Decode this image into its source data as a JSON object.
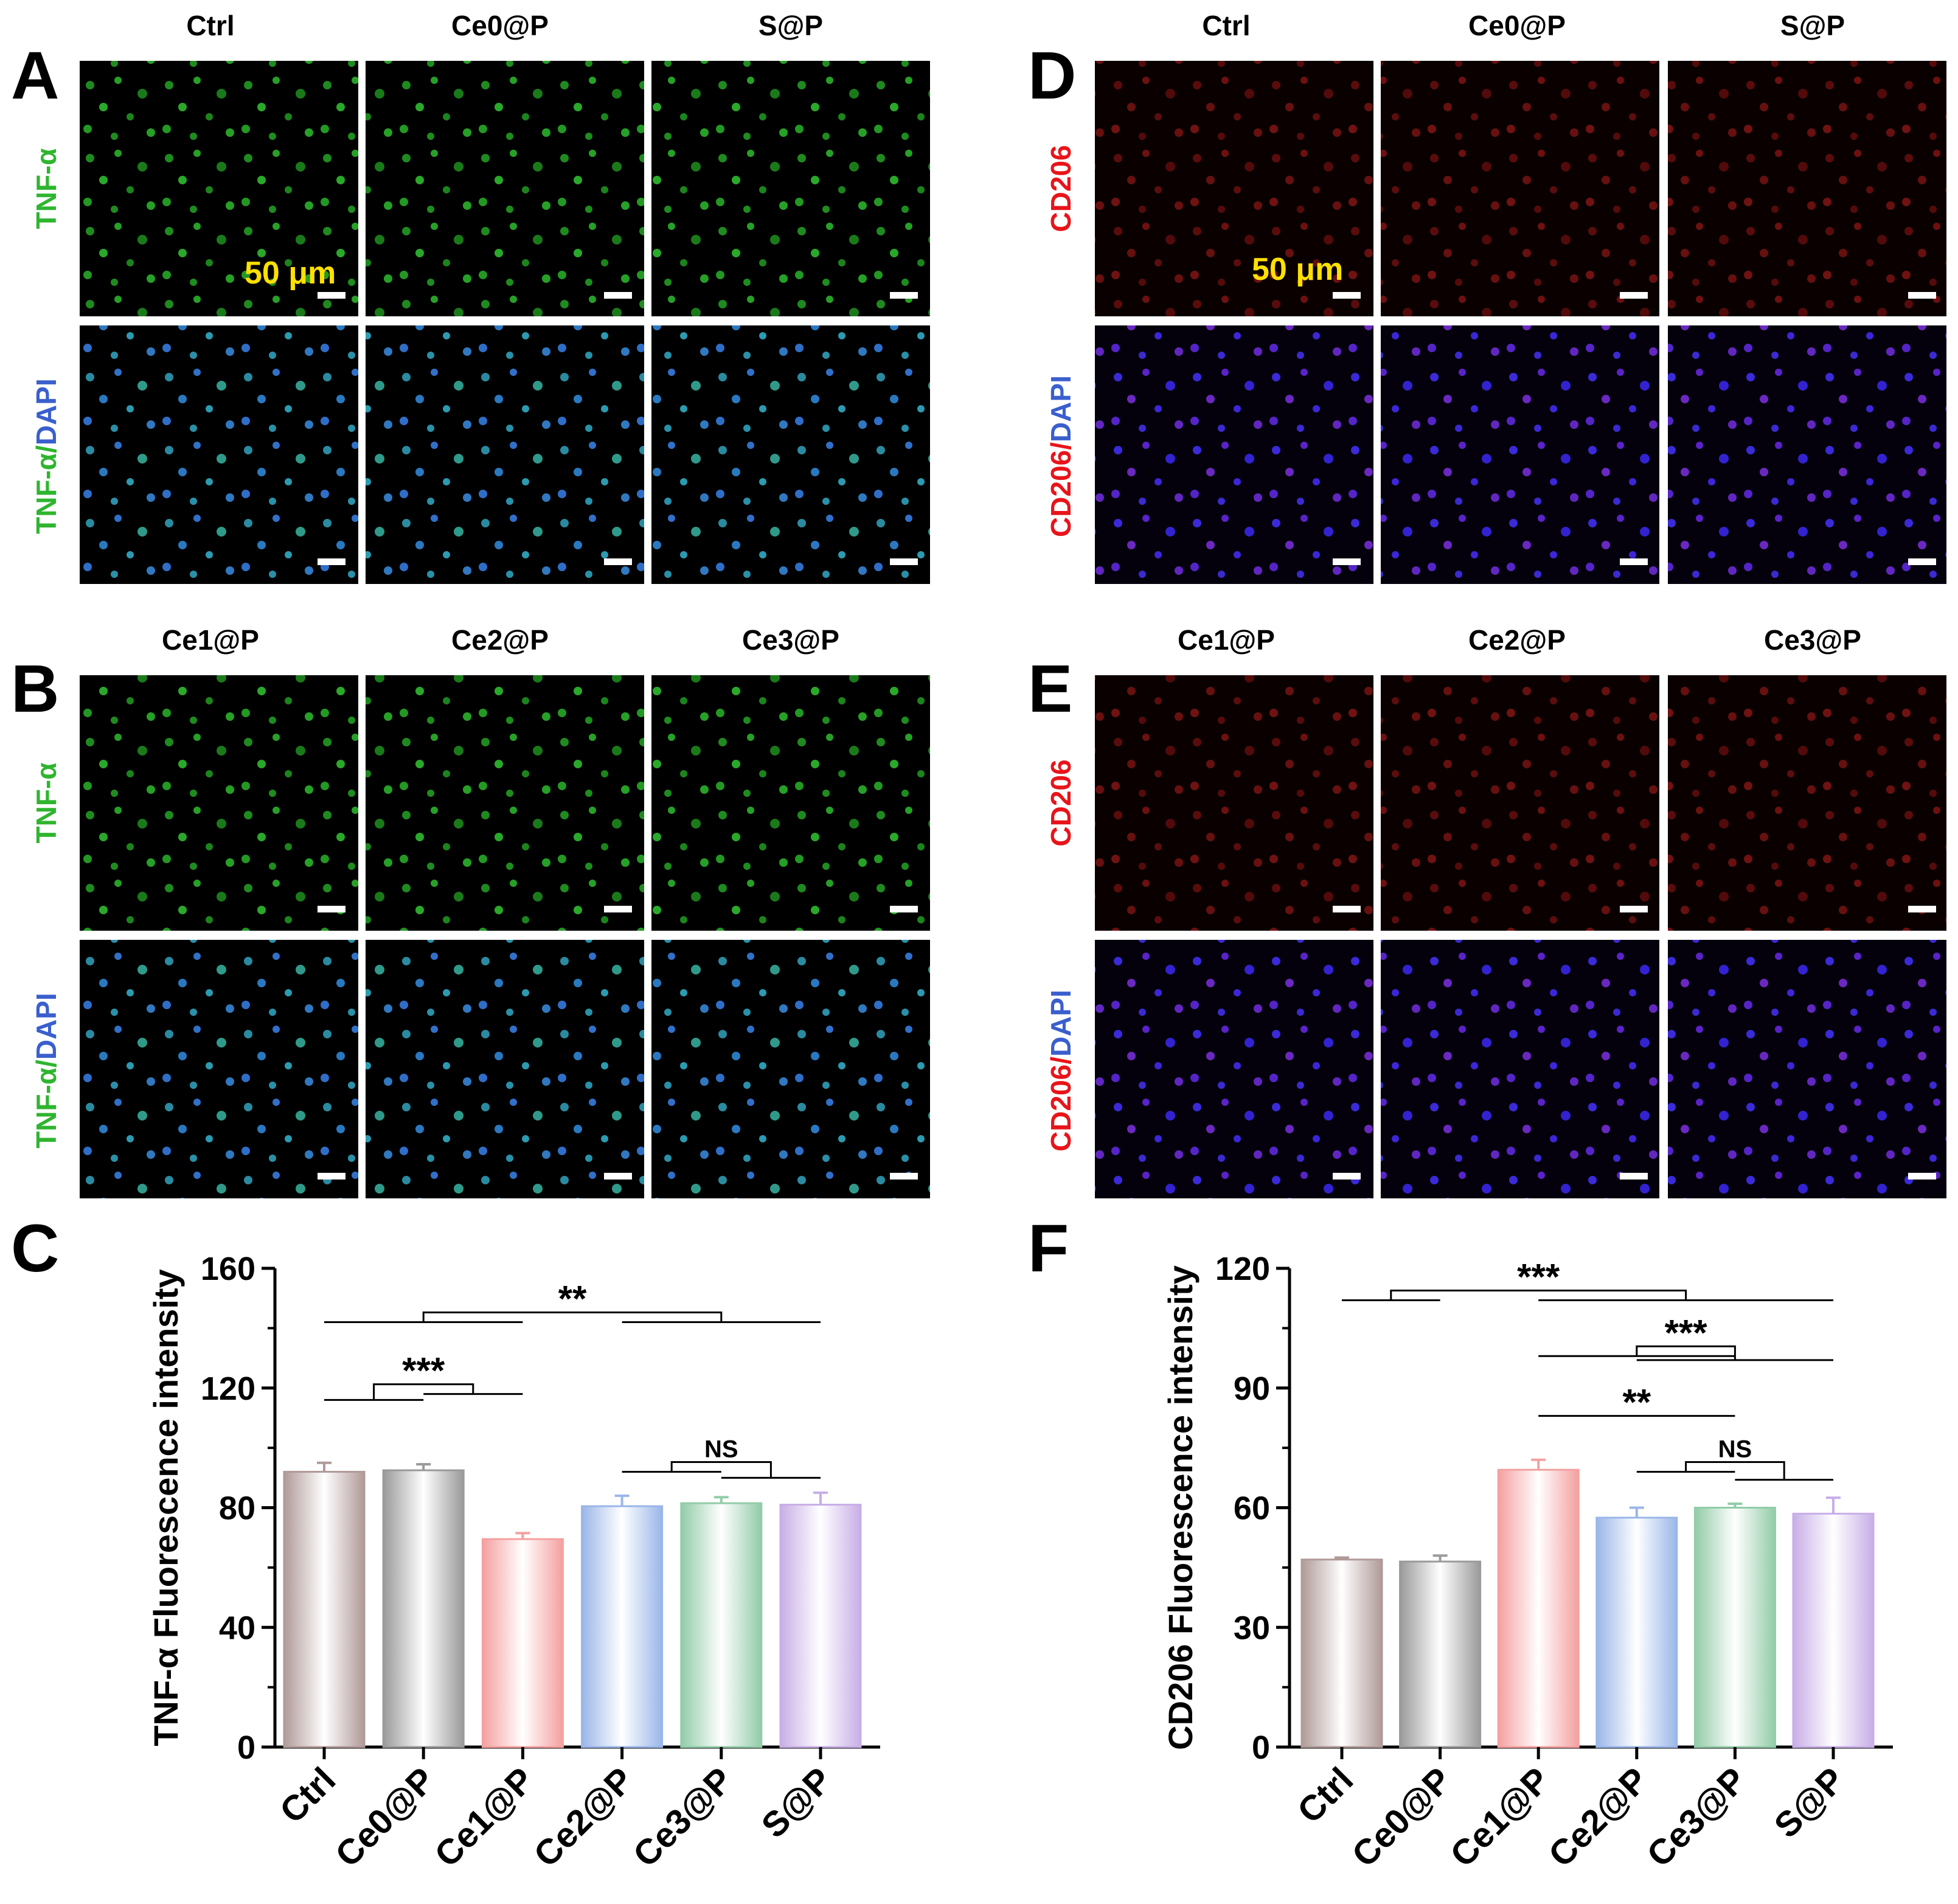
{
  "panels": {
    "A": {
      "letter": "A",
      "columns": [
        "Ctrl",
        "Ce0@P",
        "S@P"
      ],
      "row_labels": [
        [
          {
            "text": "TNF-α",
            "color": "#2fb52f"
          }
        ],
        [
          {
            "text": "TNF-α",
            "color": "#2fb52f"
          },
          {
            "text": "/",
            "color": "#2fb52f"
          },
          {
            "text": "DAPI",
            "color": "#3a5fcd"
          }
        ]
      ],
      "scale_text": "50 μm",
      "stain": "green"
    },
    "B": {
      "letter": "B",
      "columns": [
        "Ce1@P",
        "Ce2@P",
        "Ce3@P"
      ],
      "row_labels": [
        [
          {
            "text": "TNF-α",
            "color": "#2fb52f"
          }
        ],
        [
          {
            "text": "TNF-α",
            "color": "#2fb52f"
          },
          {
            "text": "/",
            "color": "#2fb52f"
          },
          {
            "text": "DAPI",
            "color": "#3a5fcd"
          }
        ]
      ],
      "scale_text": "",
      "stain": "green"
    },
    "D": {
      "letter": "D",
      "columns": [
        "Ctrl",
        "Ce0@P",
        "S@P"
      ],
      "row_labels": [
        [
          {
            "text": "CD206",
            "color": "#e8141a"
          }
        ],
        [
          {
            "text": "CD206",
            "color": "#e8141a"
          },
          {
            "text": "/",
            "color": "#e8141a"
          },
          {
            "text": "DAPI",
            "color": "#3a5fcd"
          }
        ]
      ],
      "scale_text": "50 μm",
      "stain": "red"
    },
    "E": {
      "letter": "E",
      "columns": [
        "Ce1@P",
        "Ce2@P",
        "Ce3@P"
      ],
      "row_labels": [
        [
          {
            "text": "CD206",
            "color": "#e8141a"
          }
        ],
        [
          {
            "text": "CD206",
            "color": "#e8141a"
          },
          {
            "text": "/",
            "color": "#e8141a"
          },
          {
            "text": "DAPI",
            "color": "#3a5fcd"
          }
        ]
      ],
      "scale_text": "",
      "stain": "red"
    }
  },
  "chart_data": [
    {
      "letter": "C",
      "type": "bar",
      "title": "",
      "xlabel": "",
      "ylabel": "TNF-α Fluorescence intensity",
      "ylim": [
        0,
        160
      ],
      "yticks": [
        0,
        40,
        80,
        120,
        160
      ],
      "categories": [
        "Ctrl",
        "Ce0@P",
        "Ce1@P",
        "Ce2@P",
        "Ce3@P",
        "S@P"
      ],
      "values": [
        92,
        92.5,
        69.5,
        80.5,
        81.5,
        81
      ],
      "errors": [
        3,
        2,
        2,
        3.5,
        2,
        4
      ],
      "bar_colors": [
        "#b09a98",
        "#9a9a9a",
        "#f4a0a0",
        "#9ab6e8",
        "#92cca8",
        "#c8aee6"
      ],
      "annotations": [
        {
          "label": "**",
          "left": [
            0,
            0
          ],
          "right": [
            5,
            5
          ],
          "brackets": [
            [
              0,
              2,
              142
            ],
            [
              3,
              5,
              142
            ]
          ]
        },
        {
          "label": "***",
          "note": "",
          "brackets": [
            [
              0,
              1,
              116
            ],
            [
              1,
              2,
              118
            ]
          ]
        },
        {
          "label": "NS",
          "brackets": [
            [
              3,
              4,
              92
            ],
            [
              4,
              5,
              90
            ]
          ]
        }
      ]
    },
    {
      "letter": "F",
      "type": "bar",
      "title": "",
      "xlabel": "",
      "ylabel": "CD206 Fluorescence intensity",
      "ylim": [
        0,
        120
      ],
      "yticks": [
        0,
        30,
        60,
        90,
        120
      ],
      "categories": [
        "Ctrl",
        "Ce0@P",
        "Ce1@P",
        "Ce2@P",
        "Ce3@P",
        "S@P"
      ],
      "values": [
        47,
        46.5,
        69.5,
        57.5,
        60,
        58.5
      ],
      "errors": [
        0.5,
        1.5,
        2.5,
        2.5,
        1,
        4
      ],
      "bar_colors": [
        "#b09a98",
        "#9a9a9a",
        "#f4a0a0",
        "#9ab6e8",
        "#92cca8",
        "#c8aee6"
      ],
      "annotations": [
        {
          "label": "***",
          "brackets": [
            [
              0,
              1,
              112
            ],
            [
              2,
              5,
              112
            ]
          ]
        },
        {
          "label": "***",
          "brackets": [
            [
              2,
              4,
              98
            ],
            [
              3,
              5,
              97
            ]
          ]
        },
        {
          "label": "**",
          "brackets": [
            [
              2,
              4,
              83
            ]
          ]
        },
        {
          "label": "NS",
          "brackets": [
            [
              3,
              4,
              69
            ],
            [
              4,
              5,
              67
            ]
          ]
        }
      ]
    }
  ]
}
